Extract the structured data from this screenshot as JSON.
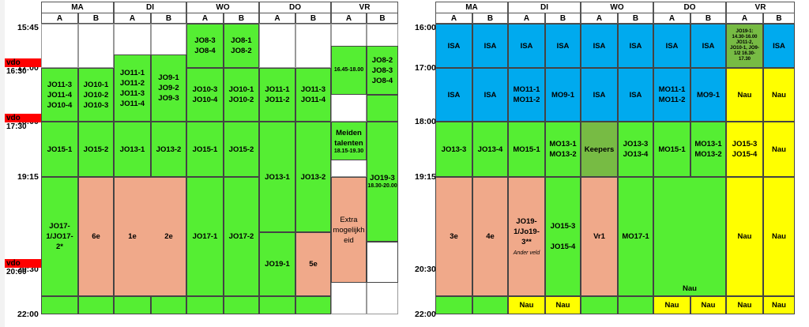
{
  "colors": {
    "green": "#55ee33",
    "salmon": "#f0a98a",
    "blue": "#00aaee",
    "yellow": "#ffff00",
    "olive": "#77bb44",
    "white": "#ffffff",
    "red": "#ff0000"
  },
  "days": [
    "MA",
    "DI",
    "WO",
    "DO",
    "VR"
  ],
  "sub": [
    "A",
    "B"
  ],
  "left": {
    "times": [
      "15:45",
      "17:00",
      "18:00",
      "19:15",
      "20:30",
      "22:00"
    ],
    "red_labels": [
      "vdo 16:30",
      "vdo 17:30",
      "vdo 20:00"
    ]
  },
  "right": {
    "times": [
      "16:00",
      "17:00",
      "18:00",
      "19:15",
      "20:30",
      "22:00"
    ]
  },
  "cells": [
    {
      "side": "L",
      "col": 4,
      "r0": 0,
      "r1": 1,
      "color": "green",
      "bold": true,
      "lines": [
        "JO8-3",
        "JO8-4"
      ]
    },
    {
      "side": "L",
      "col": 5,
      "r0": 0,
      "r1": 1,
      "color": "green",
      "bold": true,
      "lines": [
        "JO8-1",
        "JO8-2"
      ]
    },
    {
      "side": "L",
      "col": 0,
      "r0": 1,
      "r1": 2,
      "color": "green",
      "lines": [
        "JO11-3",
        "JO11-4",
        "JO10-4"
      ]
    },
    {
      "side": "L",
      "col": 1,
      "r0": 1,
      "r1": 2,
      "color": "green",
      "lines": [
        "JO10-1",
        "JO10-2",
        "JO10-3"
      ]
    },
    {
      "side": "L",
      "col": 2,
      "r0": 0.7,
      "r1": 2,
      "color": "green",
      "lines": [
        "JO11-1",
        "JO11-2",
        "JO11-3",
        "JO11-4"
      ]
    },
    {
      "side": "L",
      "col": 3,
      "r0": 0.7,
      "r1": 2,
      "color": "green",
      "lines": [
        "JO9-1",
        "JO9-2",
        "JO9-3"
      ]
    },
    {
      "side": "L",
      "col": 4,
      "r0": 1,
      "r1": 2,
      "color": "green",
      "lines": [
        "JO10-3",
        "JO10-4"
      ]
    },
    {
      "side": "L",
      "col": 5,
      "r0": 1,
      "r1": 2,
      "color": "green",
      "lines": [
        "JO10-1",
        "JO10-2"
      ]
    },
    {
      "side": "L",
      "col": 6,
      "r0": 1,
      "r1": 2,
      "color": "green",
      "lines": [
        "JO11-1",
        "JO11-2"
      ]
    },
    {
      "side": "L",
      "col": 7,
      "r0": 1,
      "r1": 2,
      "color": "green",
      "lines": [
        "JO11-3",
        "JO11-4"
      ]
    },
    {
      "side": "L",
      "col": 8,
      "r0": 0.5,
      "r1": 1.5,
      "color": "green",
      "small": true,
      "lines": [
        "16.45-18.00"
      ]
    },
    {
      "side": "L",
      "col": 9,
      "r0": 0.5,
      "r1": 1.5,
      "color": "green",
      "lines": [
        "JO8-2",
        "JO8-3",
        "JO8-4"
      ]
    },
    {
      "side": "L",
      "col": 9,
      "r0": 1.5,
      "r1": 2,
      "color": "green",
      "lines": []
    },
    {
      "side": "L",
      "col": 0,
      "r0": 2,
      "r1": 3,
      "color": "green",
      "lines": [
        "JO15-1"
      ]
    },
    {
      "side": "L",
      "col": 1,
      "r0": 2,
      "r1": 3,
      "color": "green",
      "lines": [
        "JO15-2"
      ]
    },
    {
      "side": "L",
      "col": 2,
      "r0": 2,
      "r1": 3,
      "color": "green",
      "lines": [
        "JO13-1"
      ]
    },
    {
      "side": "L",
      "col": 3,
      "r0": 2,
      "r1": 3,
      "color": "green",
      "lines": [
        "JO13-2"
      ]
    },
    {
      "side": "L",
      "col": 4,
      "r0": 2,
      "r1": 3,
      "color": "green",
      "lines": [
        "JO15-1"
      ]
    },
    {
      "side": "L",
      "col": 5,
      "r0": 2,
      "r1": 3,
      "color": "green",
      "lines": [
        "JO15-2"
      ]
    },
    {
      "side": "L",
      "col": 6,
      "r0": 2,
      "r1": 3.6,
      "color": "green",
      "lines": [
        "JO13-1"
      ]
    },
    {
      "side": "L",
      "col": 7,
      "r0": 2,
      "r1": 3.6,
      "color": "green",
      "lines": [
        "JO13-2"
      ]
    },
    {
      "side": "L",
      "col": 8,
      "r0": 2,
      "r1": 2.7,
      "color": "green",
      "lines": [
        "Meiden",
        "talenten"
      ],
      "sub": "18.15-19.30"
    },
    {
      "side": "L",
      "col": 9,
      "r0": 2,
      "r1": 3.7,
      "color": "green",
      "lines": [
        "JO19-3"
      ],
      "sub": "18.30-20.00"
    },
    {
      "side": "L",
      "col": 0,
      "r0": 3,
      "r1": 4.6,
      "color": "green",
      "lines": [
        "JO17-",
        "1/JO17-",
        "2*"
      ]
    },
    {
      "side": "L",
      "col": 1,
      "r0": 3,
      "r1": 4.6,
      "color": "salmon",
      "lines": [
        "6e"
      ]
    },
    {
      "side": "L",
      "col": 2,
      "r0": 3,
      "r1": 4.6,
      "color": "salmon",
      "span": 2,
      "lines": []
    },
    {
      "side": "L",
      "col": 2,
      "r0": 3,
      "r1": 4.6,
      "color": "none",
      "lines": [
        "1e"
      ]
    },
    {
      "side": "L",
      "col": 3,
      "r0": 3,
      "r1": 4.6,
      "color": "none",
      "lines": [
        "2e"
      ]
    },
    {
      "side": "L",
      "col": 4,
      "r0": 3,
      "r1": 4.6,
      "color": "green",
      "lines": [
        "JO17-1"
      ]
    },
    {
      "side": "L",
      "col": 5,
      "r0": 3,
      "r1": 4.6,
      "color": "green",
      "lines": [
        "JO17-2"
      ]
    },
    {
      "side": "L",
      "col": 6,
      "r0": 3.6,
      "r1": 4.6,
      "color": "green",
      "lines": [
        "JO19-1"
      ]
    },
    {
      "side": "L",
      "col": 7,
      "r0": 3.6,
      "r1": 4.6,
      "color": "salmon",
      "lines": [
        "5e"
      ]
    },
    {
      "side": "L",
      "col": 8,
      "r0": 3,
      "r1": 4.3,
      "color": "salmon",
      "normal": true,
      "lines": [
        "Extra",
        "mogelijkh",
        "eid"
      ]
    },
    {
      "side": "L",
      "col": 9,
      "r0": 3.7,
      "r1": 4.3,
      "color": "white",
      "lines": []
    },
    {
      "side": "L",
      "col": 0,
      "r0": 4.6,
      "r1": 5,
      "color": "green",
      "lines": []
    },
    {
      "side": "L",
      "col": 1,
      "r0": 4.6,
      "r1": 5,
      "color": "green",
      "lines": []
    },
    {
      "side": "L",
      "col": 2,
      "r0": 4.6,
      "r1": 5,
      "color": "green",
      "lines": []
    },
    {
      "side": "L",
      "col": 3,
      "r0": 4.6,
      "r1": 5,
      "color": "green",
      "lines": []
    },
    {
      "side": "L",
      "col": 4,
      "r0": 4.6,
      "r1": 5,
      "color": "green",
      "lines": []
    },
    {
      "side": "L",
      "col": 5,
      "r0": 4.6,
      "r1": 5,
      "color": "green",
      "lines": []
    },
    {
      "side": "L",
      "col": 6,
      "r0": 4.6,
      "r1": 5,
      "color": "green",
      "lines": []
    },
    {
      "side": "L",
      "col": 7,
      "r0": 4.6,
      "r1": 5,
      "color": "green",
      "lines": []
    },
    {
      "side": "R",
      "col": 0,
      "r0": 0,
      "r1": 1,
      "color": "blue",
      "lines": [
        "ISA"
      ]
    },
    {
      "side": "R",
      "col": 1,
      "r0": 0,
      "r1": 1,
      "color": "blue",
      "lines": [
        "ISA"
      ]
    },
    {
      "side": "R",
      "col": 2,
      "r0": 0,
      "r1": 1,
      "color": "blue",
      "lines": [
        "ISA"
      ]
    },
    {
      "side": "R",
      "col": 3,
      "r0": 0,
      "r1": 1,
      "color": "blue",
      "lines": [
        "ISA"
      ]
    },
    {
      "side": "R",
      "col": 4,
      "r0": 0,
      "r1": 1,
      "color": "blue",
      "lines": [
        "ISA"
      ]
    },
    {
      "side": "R",
      "col": 5,
      "r0": 0,
      "r1": 1,
      "color": "blue",
      "lines": [
        "ISA"
      ]
    },
    {
      "side": "R",
      "col": 6,
      "r0": 0,
      "r1": 1,
      "color": "blue",
      "lines": [
        "ISA"
      ]
    },
    {
      "side": "R",
      "col": 7,
      "r0": 0,
      "r1": 1,
      "color": "blue",
      "lines": [
        "ISA"
      ]
    },
    {
      "side": "R",
      "col": 8,
      "r0": 0,
      "r1": 1,
      "color": "olive",
      "tiny": true,
      "lines": [
        "JO19-1:",
        "14.30-16.00",
        "JO11-2,",
        "JO10-1, JO9-",
        "1/2 16.30-",
        "17.30"
      ]
    },
    {
      "side": "R",
      "col": 9,
      "r0": 0,
      "r1": 1,
      "color": "blue",
      "lines": [
        "ISA"
      ]
    },
    {
      "side": "R",
      "col": 0,
      "r0": 1,
      "r1": 2,
      "color": "blue",
      "lines": [
        "ISA"
      ]
    },
    {
      "side": "R",
      "col": 1,
      "r0": 1,
      "r1": 2,
      "color": "blue",
      "lines": [
        "ISA"
      ]
    },
    {
      "side": "R",
      "col": 2,
      "r0": 1,
      "r1": 2,
      "color": "blue",
      "lines": [
        "MO11-1",
        "MO11-2"
      ]
    },
    {
      "side": "R",
      "col": 3,
      "r0": 1,
      "r1": 2,
      "color": "blue",
      "lines": [
        "MO9-1"
      ]
    },
    {
      "side": "R",
      "col": 4,
      "r0": 1,
      "r1": 2,
      "color": "blue",
      "lines": [
        "ISA"
      ]
    },
    {
      "side": "R",
      "col": 5,
      "r0": 1,
      "r1": 2,
      "color": "blue",
      "lines": [
        "ISA"
      ]
    },
    {
      "side": "R",
      "col": 6,
      "r0": 1,
      "r1": 2,
      "color": "blue",
      "lines": [
        "MO11-1",
        "MO11-2"
      ]
    },
    {
      "side": "R",
      "col": 7,
      "r0": 1,
      "r1": 2,
      "color": "blue",
      "lines": [
        "MO9-1"
      ]
    },
    {
      "side": "R",
      "col": 8,
      "r0": 1,
      "r1": 2,
      "color": "yellow",
      "lines": [
        "Nau"
      ]
    },
    {
      "side": "R",
      "col": 9,
      "r0": 1,
      "r1": 2,
      "color": "yellow",
      "lines": [
        "Nau"
      ]
    },
    {
      "side": "R",
      "col": 0,
      "r0": 2,
      "r1": 3,
      "color": "green",
      "lines": [
        "JO13-3"
      ]
    },
    {
      "side": "R",
      "col": 1,
      "r0": 2,
      "r1": 3,
      "color": "green",
      "lines": [
        "JO13-4"
      ]
    },
    {
      "side": "R",
      "col": 2,
      "r0": 2,
      "r1": 3,
      "color": "green",
      "lines": [
        "MO15-1"
      ]
    },
    {
      "side": "R",
      "col": 3,
      "r0": 2,
      "r1": 3,
      "color": "green",
      "lines": [
        "MO13-1",
        "MO13-2"
      ]
    },
    {
      "side": "R",
      "col": 4,
      "r0": 2,
      "r1": 3,
      "color": "olive",
      "lines": [
        "Keepers"
      ]
    },
    {
      "side": "R",
      "col": 5,
      "r0": 2,
      "r1": 3,
      "color": "green",
      "lines": [
        "JO13-3",
        "JO13-4"
      ]
    },
    {
      "side": "R",
      "col": 6,
      "r0": 2,
      "r1": 3,
      "color": "green",
      "lines": [
        "MO15-1"
      ]
    },
    {
      "side": "R",
      "col": 7,
      "r0": 2,
      "r1": 3,
      "color": "green",
      "lines": [
        "MO13-1",
        "MO13-2"
      ]
    },
    {
      "side": "R",
      "col": 8,
      "r0": 2,
      "r1": 3,
      "color": "yellow",
      "lines": [
        "JO15-3",
        "JO15-4"
      ]
    },
    {
      "side": "R",
      "col": 9,
      "r0": 2,
      "r1": 3,
      "color": "yellow",
      "lines": [
        "Nau"
      ]
    },
    {
      "side": "R",
      "col": 0,
      "r0": 3,
      "r1": 4.6,
      "color": "salmon",
      "lines": [
        "3e"
      ]
    },
    {
      "side": "R",
      "col": 1,
      "r0": 3,
      "r1": 4.6,
      "color": "salmon",
      "lines": [
        "4e"
      ]
    },
    {
      "side": "R",
      "col": 2,
      "r0": 3,
      "r1": 4.6,
      "color": "salmon",
      "lines": [
        "JO19-",
        "1/Jo19-",
        "3**"
      ],
      "note": "Ander veld"
    },
    {
      "side": "R",
      "col": 3,
      "r0": 3,
      "r1": 4.6,
      "color": "green",
      "lines": [
        "JO15-3",
        "",
        "JO15-4"
      ]
    },
    {
      "side": "R",
      "col": 4,
      "r0": 3,
      "r1": 4.6,
      "color": "salmon",
      "lines": [
        "Vr1"
      ]
    },
    {
      "side": "R",
      "col": 5,
      "r0": 3,
      "r1": 4.6,
      "color": "green",
      "lines": [
        "MO17-1"
      ]
    },
    {
      "side": "R",
      "col": 6,
      "r0": 3,
      "r1": 4.6,
      "color": "green",
      "span": 2,
      "lines": [
        "Nau"
      ],
      "bottom": true
    },
    {
      "side": "R",
      "col": 8,
      "r0": 3,
      "r1": 4.6,
      "color": "yellow",
      "lines": [
        "Nau"
      ]
    },
    {
      "side": "R",
      "col": 9,
      "r0": 3,
      "r1": 4.6,
      "color": "yellow",
      "lines": [
        "Nau"
      ]
    },
    {
      "side": "R",
      "col": 0,
      "r0": 4.6,
      "r1": 5,
      "color": "green",
      "lines": []
    },
    {
      "side": "R",
      "col": 1,
      "r0": 4.6,
      "r1": 5,
      "color": "green",
      "lines": []
    },
    {
      "side": "R",
      "col": 2,
      "r0": 4.6,
      "r1": 5,
      "color": "yellow",
      "lines": [
        "Nau"
      ]
    },
    {
      "side": "R",
      "col": 3,
      "r0": 4.6,
      "r1": 5,
      "color": "yellow",
      "lines": [
        "Nau"
      ]
    },
    {
      "side": "R",
      "col": 4,
      "r0": 4.6,
      "r1": 5,
      "color": "green",
      "lines": []
    },
    {
      "side": "R",
      "col": 5,
      "r0": 4.6,
      "r1": 5,
      "color": "green",
      "lines": []
    },
    {
      "side": "R",
      "col": 6,
      "r0": 4.6,
      "r1": 5,
      "color": "yellow",
      "lines": [
        "Nau"
      ]
    },
    {
      "side": "R",
      "col": 7,
      "r0": 4.6,
      "r1": 5,
      "color": "yellow",
      "lines": [
        "Nau"
      ]
    },
    {
      "side": "R",
      "col": 8,
      "r0": 4.6,
      "r1": 5,
      "color": "yellow",
      "lines": [
        "Nau"
      ]
    },
    {
      "side": "R",
      "col": 9,
      "r0": 4.6,
      "r1": 5,
      "color": "yellow",
      "lines": [
        "Nau"
      ]
    }
  ]
}
